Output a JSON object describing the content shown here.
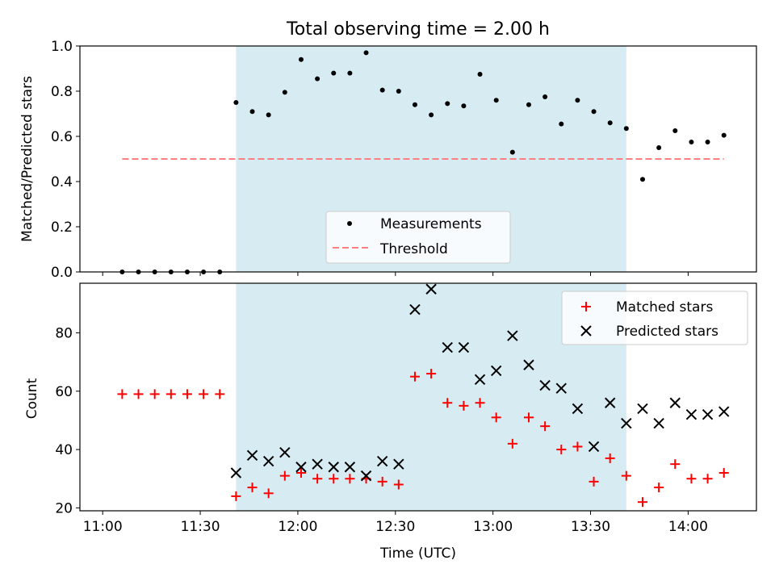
{
  "colors": {
    "span": "#add8e6",
    "measurement": "#000000",
    "threshold": "#ff8080",
    "matched": "#ff0000",
    "predicted": "#000000"
  },
  "chart_data": {
    "type": "scatter",
    "title": "Total observing time = 2.00 h",
    "xlabel": "Time (UTC)",
    "x_tick_labels": [
      "11:00",
      "11:30",
      "12:00",
      "12:30",
      "13:00",
      "13:30",
      "14:00"
    ],
    "xlim": [
      "10:53",
      "14:21"
    ],
    "shaded_interval": [
      "11:41",
      "13:41"
    ],
    "times": [
      "11:06",
      "11:11",
      "11:16",
      "11:21",
      "11:26",
      "11:31",
      "11:36",
      "11:41",
      "11:46",
      "11:51",
      "11:56",
      "12:01",
      "12:06",
      "12:11",
      "12:16",
      "12:21",
      "12:26",
      "12:31",
      "12:36",
      "12:41",
      "12:46",
      "12:51",
      "12:56",
      "13:01",
      "13:06",
      "13:11",
      "13:16",
      "13:21",
      "13:26",
      "13:31",
      "13:36",
      "13:41",
      "13:46",
      "13:51",
      "13:56",
      "14:01",
      "14:06",
      "14:11"
    ],
    "top": {
      "ylabel": "Matched/Predicted stars",
      "ylim": [
        0.0,
        1.0
      ],
      "y_tick_labels": [
        "0.0",
        "0.2",
        "0.4",
        "0.6",
        "0.8",
        "1.0"
      ],
      "legend": {
        "position": "lower-center",
        "entries": [
          "Measurements",
          "Threshold"
        ]
      },
      "threshold": 0.5,
      "ratio": [
        0,
        0,
        0,
        0,
        0,
        0,
        0,
        0.75,
        0.71,
        0.695,
        0.795,
        0.94,
        0.855,
        0.88,
        0.88,
        0.97,
        0.805,
        0.8,
        0.74,
        0.695,
        0.745,
        0.735,
        0.875,
        0.76,
        0.53,
        0.74,
        0.775,
        0.655,
        0.76,
        0.71,
        0.66,
        0.635,
        0.41,
        0.55,
        0.625,
        0.575,
        0.575,
        0.605
      ]
    },
    "bottom": {
      "ylabel": "Count",
      "ylim": [
        19,
        97
      ],
      "y_tick_labels": [
        "20",
        "40",
        "60",
        "80"
      ],
      "legend": {
        "position": "top-right",
        "entries": [
          "Matched stars",
          "Predicted stars"
        ]
      },
      "matched": [
        59,
        59,
        59,
        59,
        59,
        59,
        59,
        24,
        27,
        25,
        31,
        32,
        30,
        30,
        30,
        30,
        29,
        28,
        65,
        66,
        56,
        55,
        56,
        51,
        42,
        51,
        48,
        40,
        41,
        29,
        37,
        31,
        22,
        27,
        35,
        30,
        30,
        32
      ],
      "predicted": [
        null,
        null,
        null,
        null,
        null,
        null,
        null,
        32,
        38,
        36,
        39,
        34,
        35,
        34,
        34,
        31,
        36,
        35,
        88,
        95,
        75,
        75,
        64,
        67,
        79,
        69,
        62,
        61,
        54,
        41,
        56,
        49,
        54,
        49,
        56,
        52,
        52,
        53
      ]
    }
  }
}
